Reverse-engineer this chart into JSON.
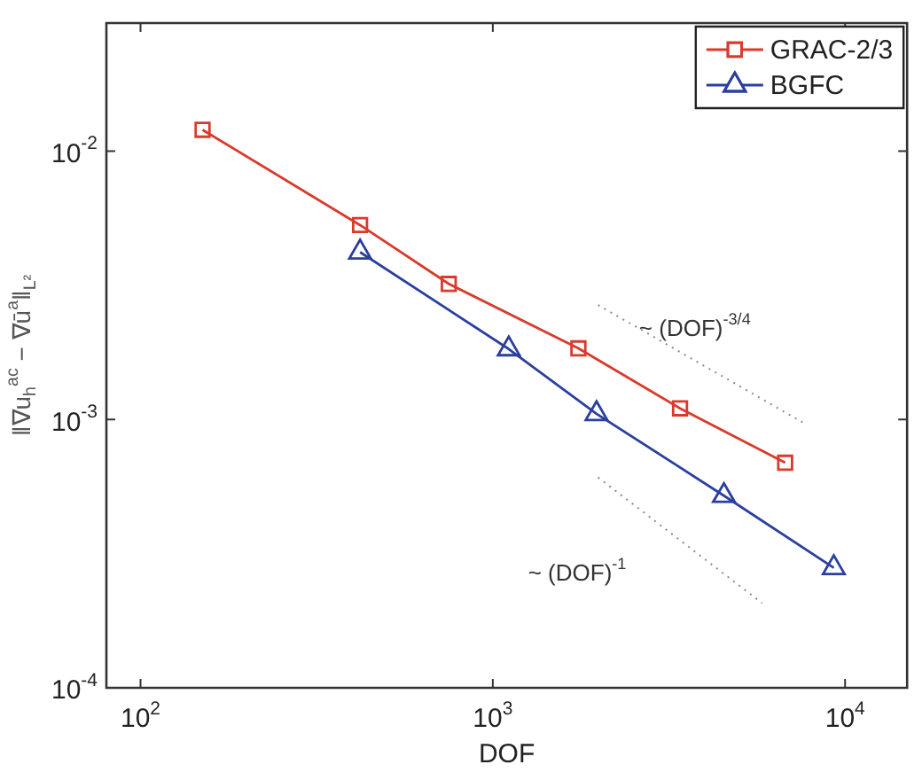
{
  "chart_data": {
    "type": "line",
    "xlabel": "DOF",
    "ylabel": "‖∇u$_{h}$$^{ac}$ − ∇ū$^{a}$‖$_{L²}$",
    "log": "xy",
    "xlim": [
      80,
      15000
    ],
    "ylim": [
      0.0001,
      0.03
    ],
    "xticks": [
      {
        "value": 100,
        "label": "10$^{2}$"
      },
      {
        "value": 1000,
        "label": "10$^{3}$"
      },
      {
        "value": 10000,
        "label": "10$^{4}$"
      }
    ],
    "yticks": [
      {
        "value": 0.0001,
        "label": "10$^{-4}$"
      },
      {
        "value": 0.001,
        "label": "10$^{-3}$"
      },
      {
        "value": 0.01,
        "label": "10$^{-2}$"
      }
    ],
    "grid": false,
    "legend": "top right",
    "series": [
      {
        "name": "GRAC-2/3",
        "color": "#d93a2b",
        "marker": "square",
        "x": [
          150,
          420,
          750,
          1750,
          3400,
          6760
        ],
        "values": [
          0.012,
          0.0053,
          0.0032,
          0.00184,
          0.0011,
          0.00069
        ]
      },
      {
        "name": "BGFC",
        "color": "#2a3f9e",
        "marker": "triangle",
        "x": [
          420,
          1110,
          1970,
          4530,
          9290
        ],
        "values": [
          0.0042,
          0.00183,
          0.00105,
          0.00052,
          0.00028
        ]
      },
      {
        "color": "#8a8a8a",
        "marker": "none",
        "line_style": "dotted",
        "x": [
          1990,
          7740
        ],
        "values": [
          0.00267,
          0.00096
        ]
      },
      {
        "color": "#8a8a8a",
        "marker": "none",
        "line_style": "dotted",
        "x": [
          1990,
          5810
        ],
        "values": [
          0.000608,
          0.000207
        ]
      }
    ],
    "annotations": [
      "~ (DOF)$^{-3/4}$",
      "~ (DOF)$^{-1}$"
    ]
  }
}
